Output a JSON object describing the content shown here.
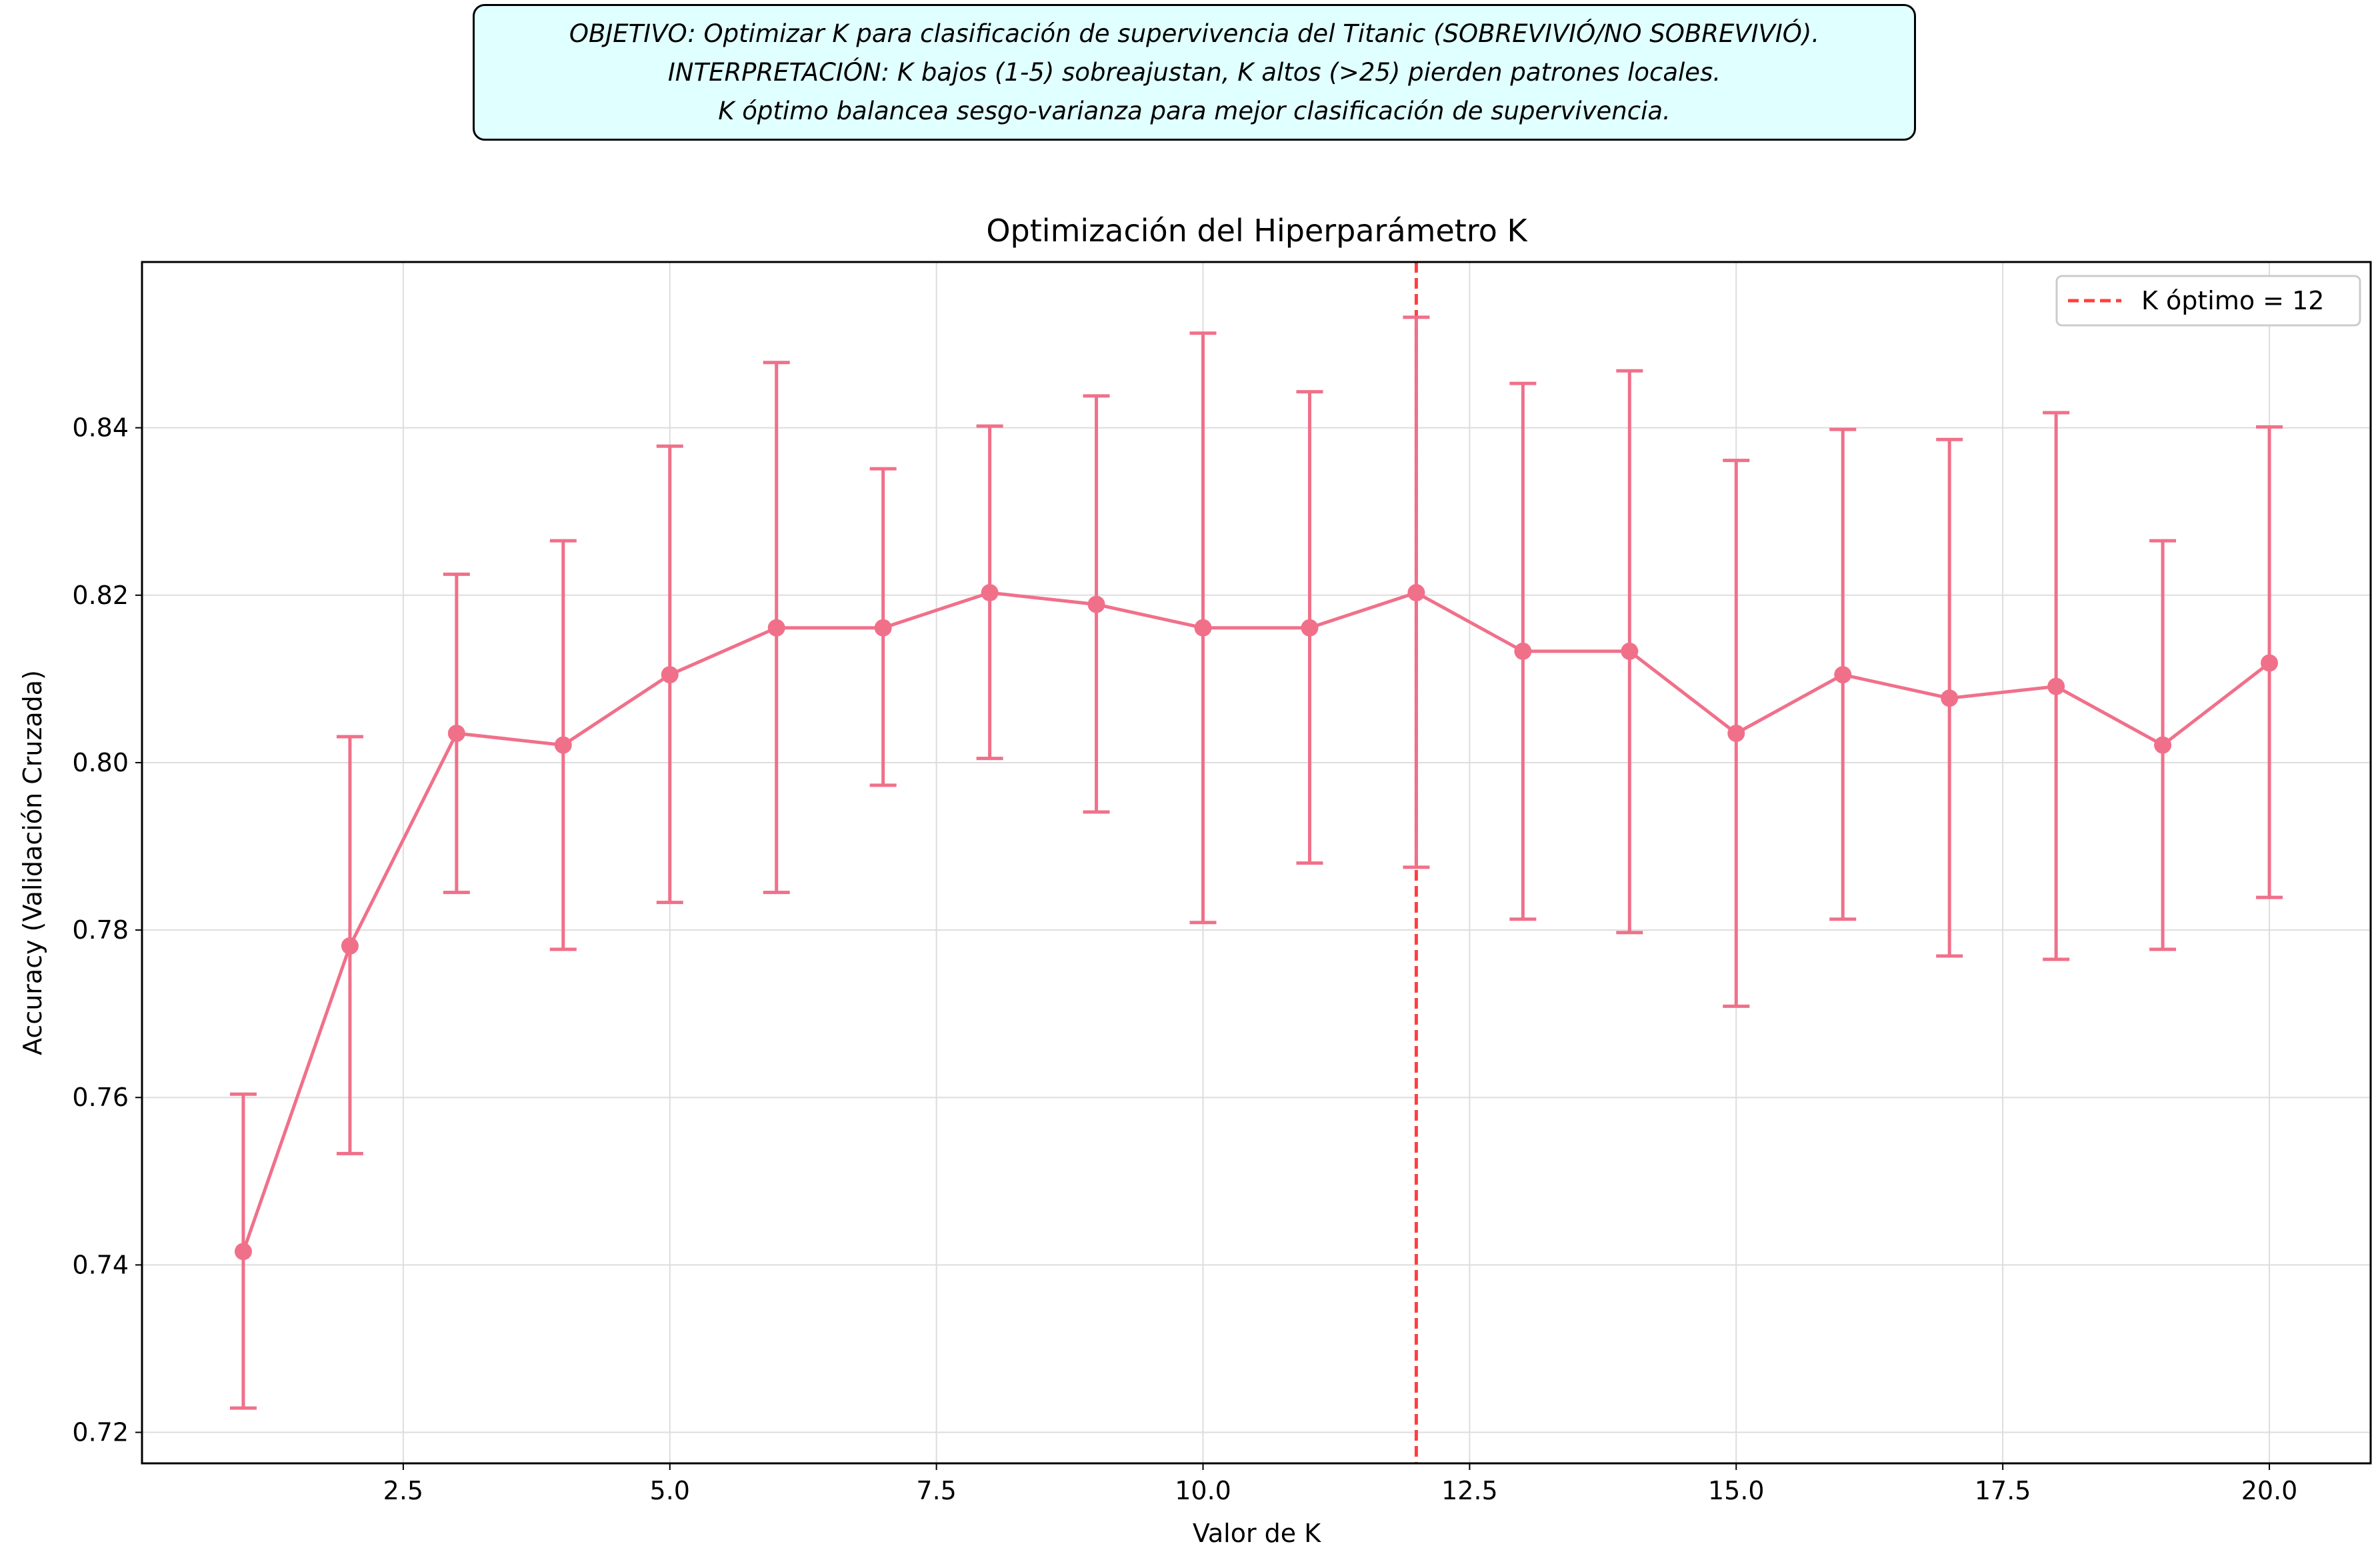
{
  "annotation": {
    "line1": "OBJETIVO: Optimizar K para clasificación de supervivencia del Titanic (SOBREVIVIÓ/NO SOBREVIVIÓ).",
    "line2": "INTERPRETACIÓN: K bajos (1-5) sobreajustan, K altos (>25) pierden patrones locales.",
    "line3": "K óptimo balancea sesgo-varianza para mejor clasificación de supervivencia."
  },
  "chart_data": {
    "type": "line",
    "title": "Optimización del Hiperparámetro K",
    "xlabel": "Valor de K",
    "ylabel": "Accuracy (Validación Cruzada)",
    "xlim": [
      0.05,
      20.95
    ],
    "ylim": [
      0.7163,
      0.8598
    ],
    "xticks": [
      2.5,
      5.0,
      7.5,
      10.0,
      12.5,
      15.0,
      17.5,
      20.0
    ],
    "xtick_labels": [
      "2.5",
      "5.0",
      "7.5",
      "10.0",
      "12.5",
      "15.0",
      "17.5",
      "20.0"
    ],
    "yticks": [
      0.72,
      0.74,
      0.76,
      0.78,
      0.8,
      0.82,
      0.84
    ],
    "ytick_labels": [
      "0.72",
      "0.74",
      "0.76",
      "0.78",
      "0.80",
      "0.82",
      "0.84"
    ],
    "grid": true,
    "legend_position": "top-right",
    "series": [
      {
        "x": [
          1,
          2,
          3,
          4,
          5,
          6,
          7,
          8,
          9,
          10,
          11,
          12,
          13,
          14,
          15,
          16,
          17,
          18,
          19,
          20
        ],
        "y": [
          0.7416,
          0.7781,
          0.8035,
          0.8021,
          0.8105,
          0.8161,
          0.8161,
          0.8203,
          0.8189,
          0.8161,
          0.8161,
          0.8203,
          0.8133,
          0.8133,
          0.8035,
          0.8105,
          0.8077,
          0.8091,
          0.8021,
          0.8119
        ],
        "err_low": [
          0.7229,
          0.7533,
          0.7845,
          0.7777,
          0.7833,
          0.7845,
          0.7973,
          0.8005,
          0.7941,
          0.7809,
          0.788,
          0.7875,
          0.7813,
          0.7797,
          0.7709,
          0.7813,
          0.7769,
          0.7765,
          0.7777,
          0.7839
        ],
        "err_high": [
          0.7604,
          0.8031,
          0.8225,
          0.8265,
          0.8378,
          0.8478,
          0.8351,
          0.8402,
          0.8438,
          0.8513,
          0.8443,
          0.8532,
          0.8453,
          0.8468,
          0.8361,
          0.8398,
          0.8386,
          0.8418,
          0.8265,
          0.8401
        ],
        "color": "#f0708a"
      }
    ],
    "optimal_line": {
      "x": 12,
      "label": "K óptimo = 12",
      "color": "#ff3f3f"
    }
  }
}
